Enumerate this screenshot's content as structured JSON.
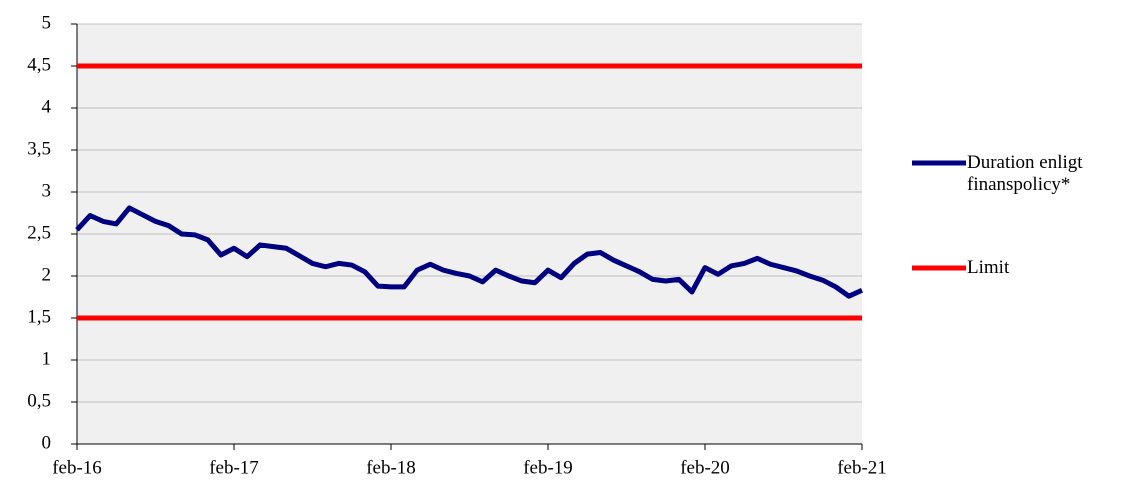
{
  "chart_data": {
    "type": "line",
    "categories": [
      "feb-16",
      null,
      null,
      null,
      null,
      null,
      null,
      null,
      null,
      null,
      null,
      null,
      "feb-17",
      null,
      null,
      null,
      null,
      null,
      null,
      null,
      null,
      null,
      null,
      null,
      "feb-18",
      null,
      null,
      null,
      null,
      null,
      null,
      null,
      null,
      null,
      null,
      null,
      "feb-19",
      null,
      null,
      null,
      null,
      null,
      null,
      null,
      null,
      null,
      null,
      null,
      "feb-20",
      null,
      null,
      null,
      null,
      null,
      null,
      null,
      null,
      null,
      null,
      null,
      "feb-21"
    ],
    "series": [
      {
        "name": "Duration enligt finanspolicy*",
        "color": "#000080",
        "values": [
          2.55,
          2.72,
          2.65,
          2.62,
          2.81,
          2.73,
          2.65,
          2.6,
          2.5,
          2.49,
          2.43,
          2.25,
          2.33,
          2.23,
          2.37,
          2.35,
          2.33,
          2.24,
          2.15,
          2.11,
          2.15,
          2.13,
          2.05,
          1.88,
          1.87,
          1.87,
          2.07,
          2.14,
          2.07,
          2.03,
          2.0,
          1.93,
          2.07,
          2.0,
          1.94,
          1.92,
          2.07,
          1.98,
          2.15,
          2.26,
          2.28,
          2.19,
          2.12,
          2.05,
          1.96,
          1.94,
          1.96,
          1.81,
          2.1,
          2.02,
          2.12,
          2.15,
          2.21,
          2.14,
          2.1,
          2.06,
          2.0,
          1.95,
          1.87,
          1.76,
          1.83
        ]
      }
    ],
    "limit": {
      "name": "Limit",
      "color": "#ff0000",
      "values": [
        4.5,
        1.5
      ]
    },
    "ylim": [
      0,
      5
    ],
    "yticks": [
      0,
      {
        "value": 0.5,
        "label": "0,5"
      },
      1,
      {
        "value": 1.5,
        "label": "1,5"
      },
      2,
      {
        "value": 2.5,
        "label": "2,5"
      },
      3,
      {
        "value": 3.5,
        "label": "3,5"
      },
      4,
      {
        "value": 4.5,
        "label": "4,5"
      },
      5
    ],
    "grid": true
  }
}
